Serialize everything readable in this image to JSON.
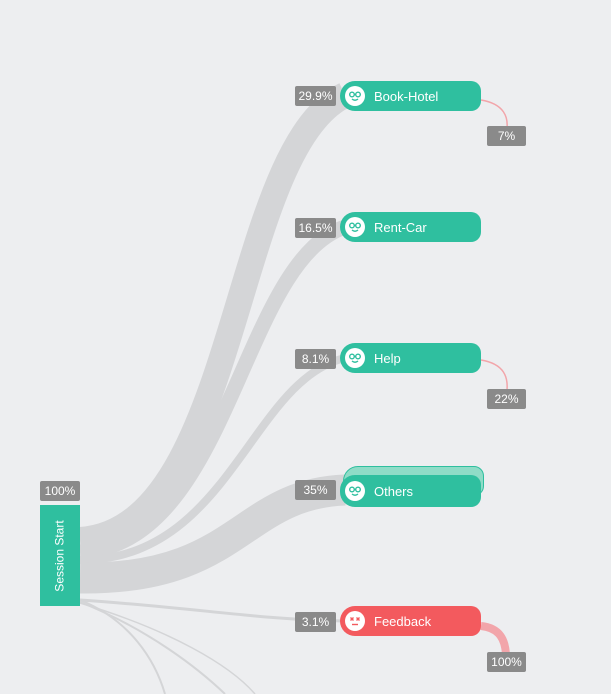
{
  "start": {
    "label": "Session Start",
    "percent": "100%"
  },
  "nodes": [
    {
      "id": "book-hotel",
      "label": "Book-Hotel",
      "percent": "29.9%",
      "status": "ok",
      "dropoff": "7%"
    },
    {
      "id": "rent-car",
      "label": "Rent-Car",
      "percent": "16.5%",
      "status": "ok",
      "dropoff": null
    },
    {
      "id": "help",
      "label": "Help",
      "percent": "8.1%",
      "status": "ok",
      "dropoff": "22%"
    },
    {
      "id": "others",
      "label": "Others",
      "percent": "35%",
      "status": "ok",
      "dropoff": null
    },
    {
      "id": "feedback",
      "label": "Feedback",
      "percent": "3.1%",
      "status": "error",
      "dropoff": "100%"
    }
  ],
  "colors": {
    "node_ok": "#2fbf9f",
    "node_error": "#f35a5e",
    "link": "#d4d5d7",
    "dropoff_line": "#f2a5aa",
    "badge": "#8a8a8a",
    "background": "#edeef0"
  },
  "icons": {
    "ok": "happy-face-icon",
    "error": "dizzy-face-icon"
  }
}
